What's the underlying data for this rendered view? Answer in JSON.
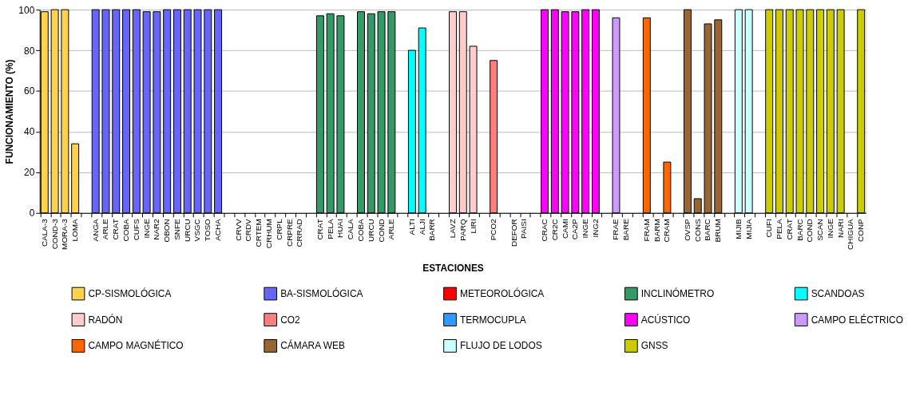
{
  "chart_data": {
    "type": "bar",
    "xlabel": "ESTACIONES",
    "ylabel": "FUNCIONAMIENTO (%)",
    "categories": [
      "CALA-3",
      "COND-3",
      "MORA-3",
      "LOMA",
      null,
      "ANGA",
      "ARLE",
      "CRAT",
      "COBA",
      "CUFS",
      "INGE",
      "NAR2",
      "OBON",
      "SNFE",
      "URCU",
      "VSGC",
      "TOSO",
      "ACHA",
      null,
      "CRVV",
      "CRDV",
      "CRTEM",
      "CRHUM",
      "CRPL",
      "CRPRE",
      "CRRAD",
      null,
      "CRAT",
      "PELA",
      "HUAI",
      "CALA",
      "COBA",
      "URCU",
      "COND",
      "ARLE",
      null,
      "ALTI",
      "ALJI",
      "BARR",
      null,
      "LAVZ",
      "PARQ",
      "LIRI",
      null,
      "PCO2",
      null,
      "DEFOR",
      "PAISI",
      null,
      "CRAC",
      "CR2C",
      "CAMI",
      "CA2P",
      "INGE",
      "ING2",
      null,
      "FRAE",
      "BARE",
      null,
      "FRAM",
      "BARM",
      "CRAM",
      null,
      "OVSP",
      "CONS",
      "BARC",
      "BRUM",
      null,
      "MIJIB",
      "MIJIA",
      null,
      "CUFI",
      "PELA",
      "CRAT",
      "BARC",
      "COND",
      "SCAN",
      "INGE",
      "NARI",
      "CHIGUA",
      "CONP"
    ],
    "series": [
      {
        "name": "CP-SISMOLÓGICA",
        "color": "#ffd24d",
        "values": [
          99,
          100,
          100,
          34,
          null,
          null,
          null,
          null,
          null,
          null,
          null,
          null,
          null,
          null,
          null,
          null,
          null,
          null,
          null,
          null,
          null,
          null,
          null,
          null,
          null,
          null,
          null,
          null,
          null,
          null,
          null,
          null,
          null,
          null,
          null,
          null,
          null,
          null,
          null,
          null,
          null,
          null,
          null,
          null,
          null,
          null,
          null,
          null,
          null,
          null,
          null,
          null,
          null,
          null,
          null,
          null,
          null,
          null,
          null,
          null,
          null,
          null,
          null,
          null,
          null,
          null,
          null,
          null,
          null,
          null,
          null,
          null,
          null,
          null,
          null,
          null,
          null,
          null,
          null,
          null,
          null
        ]
      },
      {
        "name": "BA-SISMOLÓGICA",
        "color": "#6666ff",
        "values": [
          null,
          null,
          null,
          null,
          null,
          100,
          100,
          100,
          100,
          100,
          99,
          99,
          100,
          100,
          100,
          100,
          100,
          100,
          null,
          null,
          null,
          null,
          null,
          null,
          null,
          null,
          null,
          null,
          null,
          null,
          null,
          null,
          null,
          null,
          null,
          null,
          null,
          null,
          null,
          null,
          null,
          null,
          null,
          null,
          null,
          null,
          null,
          null,
          null,
          null,
          null,
          null,
          null,
          null,
          null,
          null,
          null,
          null,
          null,
          null,
          null,
          null,
          null,
          null,
          null,
          null,
          null,
          null,
          null,
          null,
          null,
          null,
          null,
          null,
          null,
          null,
          null,
          null,
          null,
          null,
          null
        ]
      },
      {
        "name": "METEOROLÓGICA",
        "color": "#ff0000",
        "values": [
          null,
          null,
          null,
          null,
          null,
          null,
          null,
          null,
          null,
          null,
          null,
          null,
          null,
          null,
          null,
          null,
          null,
          null,
          null,
          null,
          null,
          null,
          null,
          null,
          null,
          null,
          null,
          null,
          null,
          null,
          null,
          null,
          null,
          null,
          null,
          null,
          null,
          null,
          null,
          null,
          null,
          null,
          null,
          null,
          null,
          null,
          null,
          null,
          null,
          null,
          null,
          null,
          null,
          null,
          null,
          null,
          null,
          null,
          null,
          null,
          null,
          null,
          null,
          null,
          null,
          null,
          null,
          null,
          null,
          null,
          null,
          null,
          null,
          null,
          null,
          null,
          null,
          null,
          null,
          null,
          null
        ]
      },
      {
        "name": "INCLINÓMETRO",
        "color": "#339966",
        "values": [
          null,
          null,
          null,
          null,
          null,
          null,
          null,
          null,
          null,
          null,
          null,
          null,
          null,
          null,
          null,
          null,
          null,
          null,
          null,
          null,
          null,
          null,
          null,
          null,
          null,
          null,
          null,
          97,
          98,
          97,
          null,
          99,
          98,
          99,
          99,
          null,
          null,
          null,
          null,
          null,
          null,
          null,
          null,
          null,
          null,
          null,
          null,
          null,
          null,
          null,
          null,
          null,
          null,
          null,
          null,
          null,
          null,
          null,
          null,
          null,
          null,
          null,
          null,
          null,
          null,
          null,
          null,
          null,
          null,
          null,
          null,
          null,
          null,
          null,
          null,
          null,
          null,
          null,
          null,
          null,
          null
        ]
      },
      {
        "name": "SCANDOAS",
        "color": "#00ffff",
        "values": [
          null,
          null,
          null,
          null,
          null,
          null,
          null,
          null,
          null,
          null,
          null,
          null,
          null,
          null,
          null,
          null,
          null,
          null,
          null,
          null,
          null,
          null,
          null,
          null,
          null,
          null,
          null,
          null,
          null,
          null,
          null,
          null,
          null,
          null,
          null,
          null,
          80,
          91,
          null,
          null,
          null,
          null,
          null,
          null,
          null,
          null,
          null,
          null,
          null,
          null,
          null,
          null,
          null,
          null,
          null,
          null,
          null,
          null,
          null,
          null,
          null,
          null,
          null,
          null,
          null,
          null,
          null,
          null,
          null,
          null,
          null,
          null,
          null,
          null,
          null,
          null,
          null,
          null,
          null,
          null,
          null
        ]
      },
      {
        "name": "RADÓN",
        "color": "#ffcccc",
        "values": [
          null,
          null,
          null,
          null,
          null,
          null,
          null,
          null,
          null,
          null,
          null,
          null,
          null,
          null,
          null,
          null,
          null,
          null,
          null,
          null,
          null,
          null,
          null,
          null,
          null,
          null,
          null,
          null,
          null,
          null,
          null,
          null,
          null,
          null,
          null,
          null,
          null,
          null,
          null,
          null,
          99,
          99,
          82,
          null,
          null,
          null,
          null,
          null,
          null,
          null,
          null,
          null,
          null,
          null,
          null,
          null,
          null,
          null,
          null,
          null,
          null,
          null,
          null,
          null,
          null,
          null,
          null,
          null,
          null,
          null,
          null,
          null,
          null,
          null,
          null,
          null,
          null,
          null,
          null,
          null,
          null
        ]
      },
      {
        "name": "CO2",
        "color": "#ff7f7f",
        "values": [
          null,
          null,
          null,
          null,
          null,
          null,
          null,
          null,
          null,
          null,
          null,
          null,
          null,
          null,
          null,
          null,
          null,
          null,
          null,
          null,
          null,
          null,
          null,
          null,
          null,
          null,
          null,
          null,
          null,
          null,
          null,
          null,
          null,
          null,
          null,
          null,
          null,
          null,
          null,
          null,
          null,
          null,
          null,
          null,
          75,
          null,
          null,
          null,
          null,
          null,
          null,
          null,
          null,
          null,
          null,
          null,
          null,
          null,
          null,
          null,
          null,
          null,
          null,
          null,
          null,
          null,
          null,
          null,
          null,
          null,
          null,
          null,
          null,
          null,
          null,
          null,
          null,
          null,
          null,
          null,
          null
        ]
      },
      {
        "name": "TERMOCUPLA",
        "color": "#3399ff",
        "values": [
          null,
          null,
          null,
          null,
          null,
          null,
          null,
          null,
          null,
          null,
          null,
          null,
          null,
          null,
          null,
          null,
          null,
          null,
          null,
          null,
          null,
          null,
          null,
          null,
          null,
          null,
          null,
          null,
          null,
          null,
          null,
          null,
          null,
          null,
          null,
          null,
          null,
          null,
          null,
          null,
          null,
          null,
          null,
          null,
          null,
          null,
          null,
          null,
          null,
          null,
          null,
          null,
          null,
          null,
          null,
          null,
          null,
          null,
          null,
          null,
          null,
          null,
          null,
          null,
          null,
          null,
          null,
          null,
          null,
          null,
          null,
          null,
          null,
          null,
          null,
          null,
          null,
          null,
          null,
          null,
          null
        ]
      },
      {
        "name": "ACÚSTICO",
        "color": "#ff00ff",
        "values": [
          null,
          null,
          null,
          null,
          null,
          null,
          null,
          null,
          null,
          null,
          null,
          null,
          null,
          null,
          null,
          null,
          null,
          null,
          null,
          null,
          null,
          null,
          null,
          null,
          null,
          null,
          null,
          null,
          null,
          null,
          null,
          null,
          null,
          null,
          null,
          null,
          null,
          null,
          null,
          null,
          null,
          null,
          null,
          null,
          null,
          null,
          null,
          null,
          null,
          100,
          100,
          99,
          99,
          100,
          100,
          null,
          null,
          null,
          null,
          null,
          null,
          null,
          null,
          null,
          null,
          null,
          null,
          null,
          null,
          null,
          null,
          null,
          null,
          null,
          null,
          null,
          null,
          null,
          null,
          null,
          null
        ]
      },
      {
        "name": "CAMPO ELÉCTRICO",
        "color": "#cc99ff",
        "values": [
          null,
          null,
          null,
          null,
          null,
          null,
          null,
          null,
          null,
          null,
          null,
          null,
          null,
          null,
          null,
          null,
          null,
          null,
          null,
          null,
          null,
          null,
          null,
          null,
          null,
          null,
          null,
          null,
          null,
          null,
          null,
          null,
          null,
          null,
          null,
          null,
          null,
          null,
          null,
          null,
          null,
          null,
          null,
          null,
          null,
          null,
          null,
          null,
          null,
          null,
          null,
          null,
          null,
          null,
          null,
          null,
          96,
          null,
          null,
          null,
          null,
          null,
          null,
          null,
          null,
          null,
          null,
          null,
          null,
          null,
          null,
          null,
          null,
          null,
          null,
          null,
          null,
          null,
          null,
          null,
          null
        ]
      },
      {
        "name": "CAMPO MAGNÉTICO",
        "color": "#ff6600",
        "values": [
          null,
          null,
          null,
          null,
          null,
          null,
          null,
          null,
          null,
          null,
          null,
          null,
          null,
          null,
          null,
          null,
          null,
          null,
          null,
          null,
          null,
          null,
          null,
          null,
          null,
          null,
          null,
          null,
          null,
          null,
          null,
          null,
          null,
          null,
          null,
          null,
          null,
          null,
          null,
          null,
          null,
          null,
          null,
          null,
          null,
          null,
          null,
          null,
          null,
          null,
          null,
          null,
          null,
          null,
          null,
          null,
          null,
          null,
          null,
          96,
          null,
          25,
          null,
          null,
          null,
          null,
          null,
          null,
          null,
          null,
          null,
          null,
          null,
          null,
          null,
          null,
          null,
          null,
          null,
          null,
          null
        ]
      },
      {
        "name": "CÁMARA WEB",
        "color": "#996633",
        "values": [
          null,
          null,
          null,
          null,
          null,
          null,
          null,
          null,
          null,
          null,
          null,
          null,
          null,
          null,
          null,
          null,
          null,
          null,
          null,
          null,
          null,
          null,
          null,
          null,
          null,
          null,
          null,
          null,
          null,
          null,
          null,
          null,
          null,
          null,
          null,
          null,
          null,
          null,
          null,
          null,
          null,
          null,
          null,
          null,
          null,
          null,
          null,
          null,
          null,
          null,
          null,
          null,
          null,
          null,
          null,
          null,
          null,
          null,
          null,
          null,
          null,
          null,
          null,
          100,
          7,
          93,
          95,
          null,
          null,
          null,
          null,
          null,
          null,
          null,
          null,
          null,
          null,
          null,
          null,
          null,
          null
        ]
      },
      {
        "name": "FLUJO DE LODOS",
        "color": "#ccffff",
        "values": [
          null,
          null,
          null,
          null,
          null,
          null,
          null,
          null,
          null,
          null,
          null,
          null,
          null,
          null,
          null,
          null,
          null,
          null,
          null,
          null,
          null,
          null,
          null,
          null,
          null,
          null,
          null,
          null,
          null,
          null,
          null,
          null,
          null,
          null,
          null,
          null,
          null,
          null,
          null,
          null,
          null,
          null,
          null,
          null,
          null,
          null,
          null,
          null,
          null,
          null,
          null,
          null,
          null,
          null,
          null,
          null,
          null,
          null,
          null,
          null,
          null,
          null,
          null,
          null,
          null,
          null,
          null,
          null,
          100,
          100,
          null,
          null,
          null,
          null,
          null,
          null,
          null,
          null,
          null,
          null,
          null
        ]
      },
      {
        "name": "GNSS",
        "color": "#cccc00",
        "values": [
          null,
          null,
          null,
          null,
          null,
          null,
          null,
          null,
          null,
          null,
          null,
          null,
          null,
          null,
          null,
          null,
          null,
          null,
          null,
          null,
          null,
          null,
          null,
          null,
          null,
          null,
          null,
          null,
          null,
          null,
          null,
          null,
          null,
          null,
          null,
          null,
          null,
          null,
          null,
          null,
          null,
          null,
          null,
          null,
          null,
          null,
          null,
          null,
          null,
          null,
          null,
          null,
          null,
          null,
          null,
          null,
          null,
          null,
          null,
          null,
          null,
          null,
          null,
          null,
          null,
          null,
          null,
          null,
          null,
          null,
          null,
          100,
          100,
          100,
          100,
          100,
          100,
          100,
          100,
          null,
          100
        ]
      }
    ],
    "ylim": [
      0,
      100
    ],
    "yticks": [
      0,
      20,
      40,
      60,
      80,
      100
    ],
    "grid": "y",
    "legend": "bottom"
  }
}
